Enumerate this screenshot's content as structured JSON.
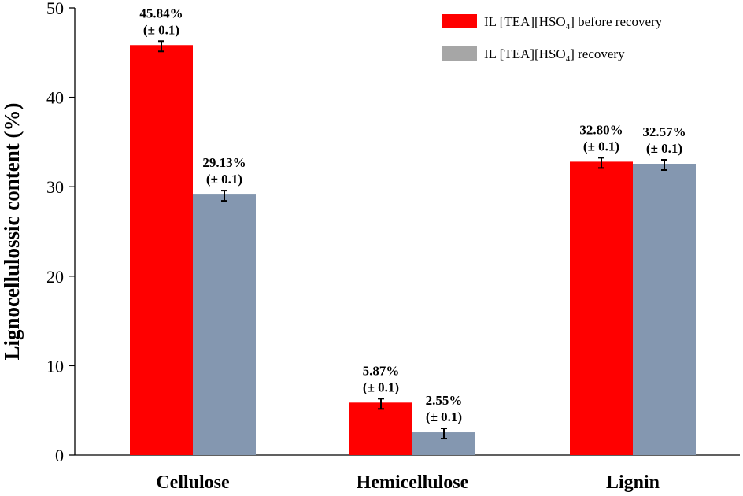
{
  "chart_data": {
    "type": "bar",
    "categories": [
      "Cellulose",
      "Hemicellulose",
      "Lignin"
    ],
    "series": [
      {
        "name": "IL [TEA][HSO4] before recovery",
        "legend_main": "IL [TEA][HSO",
        "legend_sub": "4",
        "legend_tail": "] before recovery",
        "color": "#ff0000",
        "values": [
          45.84,
          5.87,
          32.8
        ],
        "labels": [
          "45.84%",
          "5.87%",
          "32.80%"
        ],
        "errors": [
          0.1,
          0.1,
          0.1
        ]
      },
      {
        "name": "IL [TEA][HSO4] recovery",
        "legend_main": "IL [TEA][HSO",
        "legend_sub": "4",
        "legend_tail": "] recovery",
        "color": "#8497b0",
        "values": [
          29.13,
          2.55,
          32.57
        ],
        "labels": [
          "29.13%",
          "2.55%",
          "32.57%"
        ],
        "errors": [
          0.1,
          0.1,
          0.1
        ]
      }
    ],
    "error_label": "(± 0.1)",
    "ylabel": "Lignocellulossic content (%)",
    "xlabel": "",
    "ylim": [
      0,
      50
    ],
    "yticks": [
      0,
      10,
      20,
      30,
      40,
      50
    ],
    "legend_position": "top-right",
    "legend_swatch_colors": [
      "#ff0000",
      "#a6a6a6"
    ],
    "grid": false
  }
}
